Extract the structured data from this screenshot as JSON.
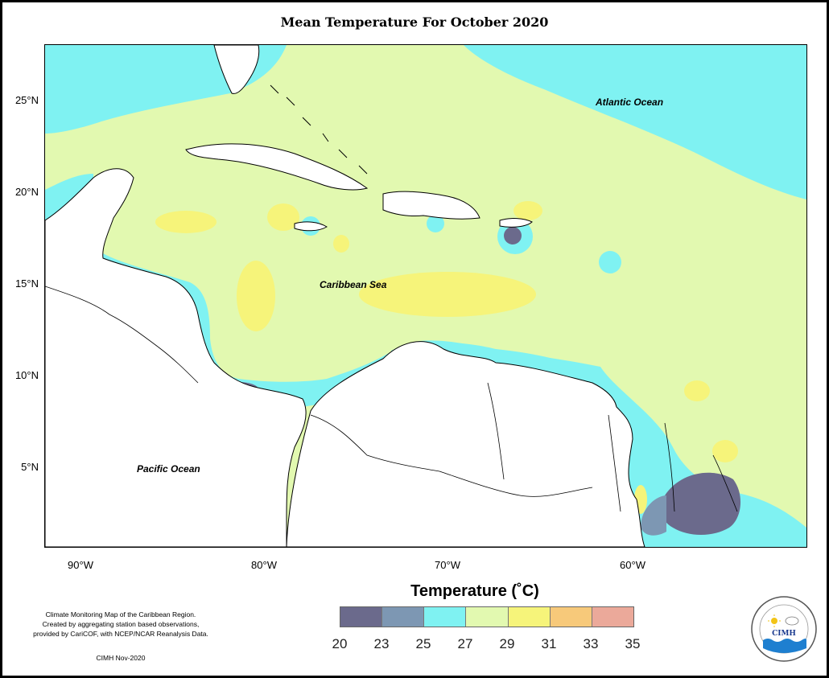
{
  "title": "Mean Temperature For October 2020",
  "map": {
    "lat_ticks": [
      {
        "label": "25°N",
        "value": 25
      },
      {
        "label": "20°N",
        "value": 20
      },
      {
        "label": "15°N",
        "value": 15
      },
      {
        "label": "10°N",
        "value": 10
      },
      {
        "label": "5°N",
        "value": 5
      }
    ],
    "lon_ticks": [
      {
        "label": "90°W",
        "value": -90
      },
      {
        "label": "80°W",
        "value": -80
      },
      {
        "label": "70°W",
        "value": -70
      },
      {
        "label": "60°W",
        "value": -60
      }
    ],
    "extent": {
      "lon": [
        -92,
        -50.5
      ],
      "lat": [
        1,
        28.3
      ]
    },
    "labels": {
      "atlantic": "Atlantic Ocean",
      "caribbean": "Caribbean Sea",
      "pacific": "Pacific Ocean"
    }
  },
  "legend": {
    "title": "Temperature (˚C)",
    "ticks": [
      "20",
      "23",
      "25",
      "27",
      "29",
      "31",
      "33",
      "35"
    ],
    "colors": [
      "#6b6a8c",
      "#7d97b3",
      "#7ff2f2",
      "#e2f9b0",
      "#f6f47a",
      "#f7c97a",
      "#eba99a"
    ]
  },
  "credit": {
    "line1": "Climate Monitoring Map of the Caribbean Region.",
    "line2": "Created by aggregating station based observations,",
    "line3": "provided by CariCOF, with NCEP/NCAR Reanalysis Data.",
    "date": "CIMH Nov-2020"
  },
  "logo": {
    "text": "CIMH"
  }
}
